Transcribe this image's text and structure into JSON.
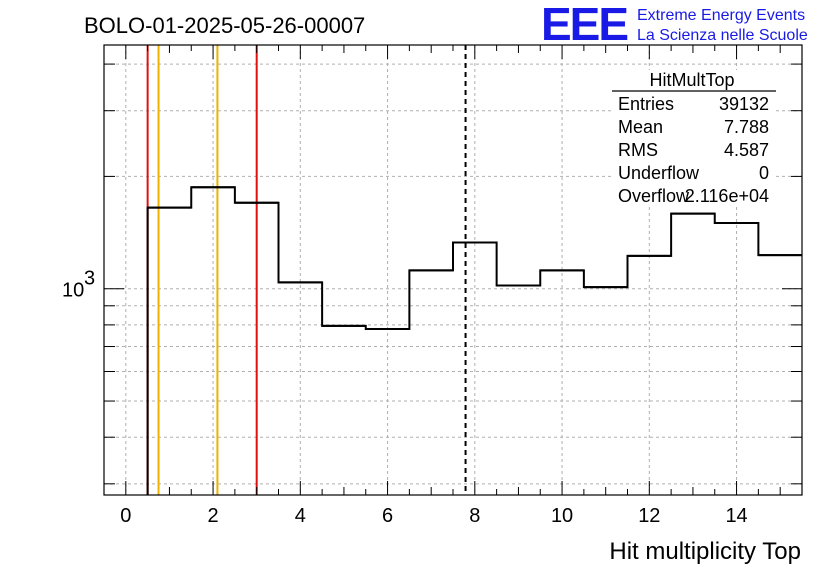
{
  "title": "BOLO-01-2025-05-26-00007",
  "logo": {
    "mark": "EEE",
    "line1": "Extreme Energy Events",
    "line2": "La Scienza nelle Scuole",
    "color": "#1a1ae6"
  },
  "stats": {
    "name": "HitMultTop",
    "rows": [
      {
        "label": "Entries",
        "value": "39132"
      },
      {
        "label": "Mean",
        "value": "7.788"
      },
      {
        "label": "RMS",
        "value": "4.587"
      },
      {
        "label": "Underflow",
        "value": "0"
      },
      {
        "label": "Overflow",
        "value": "2.116e+04"
      }
    ]
  },
  "chart_data": {
    "type": "histogram",
    "xlabel": "Hit multiplicity Top",
    "ylabel": "",
    "xlim": [
      -0.5,
      15.5
    ],
    "ylim": [
      280,
      4500
    ],
    "yscale": "log",
    "grid": true,
    "x_ticks": [
      0,
      2,
      4,
      6,
      8,
      10,
      12,
      14
    ],
    "y_ticks": [
      {
        "value": 1000,
        "label": "10",
        "exponent": "3"
      }
    ],
    "bins": [
      {
        "x0": 0.5,
        "x1": 1.5,
        "y": 1650
      },
      {
        "x0": 1.5,
        "x1": 2.5,
        "y": 1870
      },
      {
        "x0": 2.5,
        "x1": 3.5,
        "y": 1700
      },
      {
        "x0": 3.5,
        "x1": 4.5,
        "y": 1040
      },
      {
        "x0": 4.5,
        "x1": 5.5,
        "y": 795
      },
      {
        "x0": 5.5,
        "x1": 6.5,
        "y": 780
      },
      {
        "x0": 6.5,
        "x1": 7.5,
        "y": 1120
      },
      {
        "x0": 7.5,
        "x1": 8.5,
        "y": 1330
      },
      {
        "x0": 8.5,
        "x1": 9.5,
        "y": 1020
      },
      {
        "x0": 9.5,
        "x1": 10.5,
        "y": 1120
      },
      {
        "x0": 10.5,
        "x1": 11.5,
        "y": 1010
      },
      {
        "x0": 11.5,
        "x1": 12.5,
        "y": 1225
      },
      {
        "x0": 12.5,
        "x1": 13.5,
        "y": 1590
      },
      {
        "x0": 13.5,
        "x1": 14.5,
        "y": 1500
      },
      {
        "x0": 14.5,
        "x1": 15.5,
        "y": 1230
      }
    ],
    "vlines": [
      {
        "x": 0.5,
        "color": "#e01010",
        "style": "solid"
      },
      {
        "x": 0.75,
        "color": "#f0b000",
        "style": "solid"
      },
      {
        "x": 2.1,
        "color": "#f0b000",
        "style": "solid"
      },
      {
        "x": 3.0,
        "color": "#e01010",
        "style": "solid"
      },
      {
        "x": 7.788,
        "color": "#000000",
        "style": "dashed"
      }
    ]
  }
}
